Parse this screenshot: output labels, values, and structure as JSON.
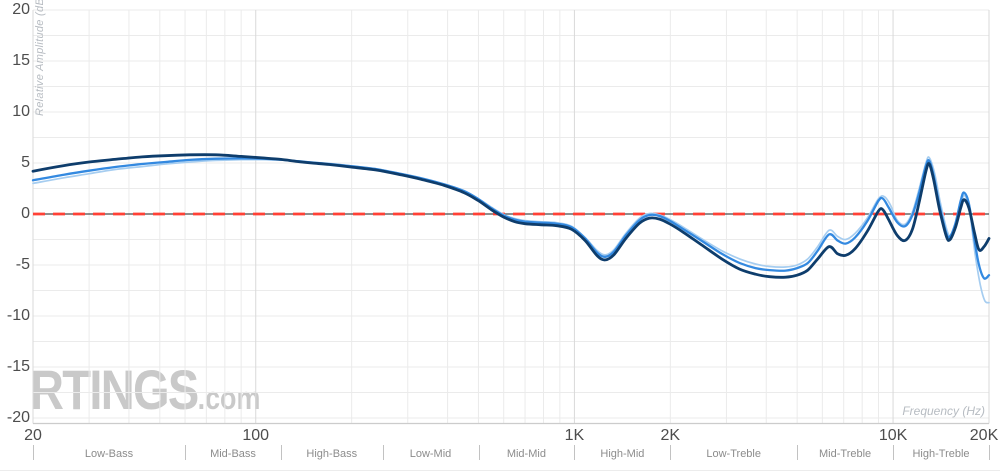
{
  "watermark": {
    "brand": "RTINGS",
    "suffix": ".com"
  },
  "chart_data": {
    "type": "line",
    "title": "",
    "xlabel": "Frequency (Hz)",
    "ylabel": "Relative Amplitude (dBr)",
    "x_scale": "log",
    "xlim": [
      20,
      20000
    ],
    "ylim": [
      -20,
      20
    ],
    "grid": {
      "y_step": 2.5,
      "x_minor_per_decade": true
    },
    "zero_line": {
      "value": 0,
      "solid_color": "#4a4a4a",
      "dash_color": "#ff4136"
    },
    "y_ticks": [
      {
        "label": "20",
        "v": 20
      },
      {
        "label": "15",
        "v": 15
      },
      {
        "label": "10",
        "v": 10
      },
      {
        "label": "5",
        "v": 5
      },
      {
        "label": "0",
        "v": 0
      },
      {
        "label": "-5",
        "v": -5
      },
      {
        "label": "-10",
        "v": -10
      },
      {
        "label": "-15",
        "v": -15
      },
      {
        "label": "-20",
        "v": -20
      }
    ],
    "x_ticks": [
      {
        "label": "20",
        "f": 20
      },
      {
        "label": "100",
        "f": 100
      },
      {
        "label": "1K",
        "f": 1000
      },
      {
        "label": "2K",
        "f": 2000
      },
      {
        "label": "10K",
        "f": 10000
      },
      {
        "label": "20K",
        "f": 20000
      }
    ],
    "bands": [
      {
        "label": "Low-Bass",
        "from": 20,
        "to": 60
      },
      {
        "label": "Mid-Bass",
        "from": 60,
        "to": 120
      },
      {
        "label": "High-Bass",
        "from": 120,
        "to": 250
      },
      {
        "label": "Low-Mid",
        "from": 250,
        "to": 500
      },
      {
        "label": "Mid-Mid",
        "from": 500,
        "to": 1000
      },
      {
        "label": "High-Mid",
        "from": 1000,
        "to": 2000
      },
      {
        "label": "Low-Treble",
        "from": 2000,
        "to": 5000
      },
      {
        "label": "Mid-Treble",
        "from": 5000,
        "to": 10000
      },
      {
        "label": "High-Treble",
        "from": 10000,
        "to": 20000
      }
    ],
    "series": [
      {
        "name": "pale-blue",
        "color": "#a6cdf0",
        "width": 1.7,
        "points": [
          [
            20,
            3.0
          ],
          [
            25,
            3.55
          ],
          [
            30,
            3.95
          ],
          [
            36,
            4.35
          ],
          [
            44,
            4.65
          ],
          [
            52,
            4.9
          ],
          [
            62,
            5.1
          ],
          [
            75,
            5.25
          ],
          [
            90,
            5.32
          ],
          [
            105,
            5.32
          ],
          [
            120,
            5.28
          ],
          [
            135,
            5.18
          ],
          [
            150,
            5.08
          ],
          [
            170,
            4.95
          ],
          [
            200,
            4.72
          ],
          [
            240,
            4.42
          ],
          [
            280,
            4.02
          ],
          [
            330,
            3.55
          ],
          [
            390,
            2.95
          ],
          [
            450,
            2.3
          ],
          [
            500,
            1.5
          ],
          [
            550,
            0.65
          ],
          [
            600,
            -0.05
          ],
          [
            650,
            -0.45
          ],
          [
            700,
            -0.65
          ],
          [
            780,
            -0.75
          ],
          [
            880,
            -0.85
          ],
          [
            980,
            -1.2
          ],
          [
            1080,
            -2.3
          ],
          [
            1180,
            -3.6
          ],
          [
            1250,
            -4.0
          ],
          [
            1330,
            -3.5
          ],
          [
            1450,
            -1.9
          ],
          [
            1600,
            -0.4
          ],
          [
            1720,
            0.05
          ],
          [
            1850,
            -0.1
          ],
          [
            2000,
            -0.55
          ],
          [
            2200,
            -1.3
          ],
          [
            2500,
            -2.4
          ],
          [
            2900,
            -3.6
          ],
          [
            3300,
            -4.4
          ],
          [
            3700,
            -4.9
          ],
          [
            4100,
            -5.15
          ],
          [
            4600,
            -5.2
          ],
          [
            5000,
            -5.0
          ],
          [
            5400,
            -4.4
          ],
          [
            5800,
            -3.2
          ],
          [
            6300,
            -1.6
          ],
          [
            6700,
            -2.2
          ],
          [
            7100,
            -2.5
          ],
          [
            7600,
            -1.9
          ],
          [
            8300,
            -0.4
          ],
          [
            9000,
            1.5
          ],
          [
            9400,
            1.7
          ],
          [
            9800,
            0.9
          ],
          [
            10300,
            -0.6
          ],
          [
            10900,
            -1.0
          ],
          [
            11500,
            0.2
          ],
          [
            12100,
            2.6
          ],
          [
            12700,
            5.1
          ],
          [
            13000,
            5.5
          ],
          [
            13500,
            4.0
          ],
          [
            14100,
            1.0
          ],
          [
            14800,
            -1.7
          ],
          [
            15200,
            -2.1
          ],
          [
            15800,
            -1.1
          ],
          [
            16400,
            1.2
          ],
          [
            16800,
            1.8
          ],
          [
            17400,
            0.2
          ],
          [
            18100,
            -4.0
          ],
          [
            18800,
            -7.0
          ],
          [
            19400,
            -8.5
          ],
          [
            20000,
            -8.7
          ]
        ]
      },
      {
        "name": "bright-blue",
        "color": "#3389e0",
        "width": 2.3,
        "points": [
          [
            20,
            3.3
          ],
          [
            25,
            3.85
          ],
          [
            30,
            4.25
          ],
          [
            36,
            4.6
          ],
          [
            44,
            4.9
          ],
          [
            52,
            5.1
          ],
          [
            62,
            5.3
          ],
          [
            75,
            5.42
          ],
          [
            90,
            5.45
          ],
          [
            105,
            5.42
          ],
          [
            120,
            5.32
          ],
          [
            135,
            5.18
          ],
          [
            150,
            5.05
          ],
          [
            170,
            4.9
          ],
          [
            200,
            4.68
          ],
          [
            240,
            4.38
          ],
          [
            280,
            3.98
          ],
          [
            330,
            3.5
          ],
          [
            390,
            2.9
          ],
          [
            450,
            2.25
          ],
          [
            500,
            1.45
          ],
          [
            550,
            0.55
          ],
          [
            600,
            -0.15
          ],
          [
            650,
            -0.55
          ],
          [
            700,
            -0.75
          ],
          [
            780,
            -0.85
          ],
          [
            880,
            -0.95
          ],
          [
            980,
            -1.3
          ],
          [
            1080,
            -2.4
          ],
          [
            1180,
            -3.8
          ],
          [
            1250,
            -4.2
          ],
          [
            1330,
            -3.7
          ],
          [
            1450,
            -2.1
          ],
          [
            1600,
            -0.6
          ],
          [
            1720,
            -0.1
          ],
          [
            1850,
            -0.2
          ],
          [
            2000,
            -0.7
          ],
          [
            2200,
            -1.5
          ],
          [
            2500,
            -2.6
          ],
          [
            2900,
            -3.9
          ],
          [
            3300,
            -4.8
          ],
          [
            3700,
            -5.3
          ],
          [
            4100,
            -5.5
          ],
          [
            4600,
            -5.55
          ],
          [
            5000,
            -5.3
          ],
          [
            5400,
            -4.8
          ],
          [
            5800,
            -3.6
          ],
          [
            6300,
            -2.0
          ],
          [
            6700,
            -2.6
          ],
          [
            7100,
            -2.9
          ],
          [
            7600,
            -2.3
          ],
          [
            8300,
            -0.7
          ],
          [
            9000,
            1.3
          ],
          [
            9300,
            1.5
          ],
          [
            9700,
            0.6
          ],
          [
            10300,
            -0.8
          ],
          [
            10900,
            -1.2
          ],
          [
            11500,
            -0.1
          ],
          [
            12100,
            2.2
          ],
          [
            12700,
            4.8
          ],
          [
            13000,
            5.2
          ],
          [
            13400,
            3.8
          ],
          [
            14000,
            0.8
          ],
          [
            14700,
            -1.9
          ],
          [
            15100,
            -2.2
          ],
          [
            15700,
            -0.9
          ],
          [
            16300,
            1.3
          ],
          [
            16700,
            2.1
          ],
          [
            17300,
            1.0
          ],
          [
            18000,
            -2.5
          ],
          [
            18600,
            -5.0
          ],
          [
            19300,
            -6.3
          ],
          [
            20000,
            -6.0
          ]
        ]
      },
      {
        "name": "dark-navy",
        "color": "#0e3d6c",
        "width": 2.8,
        "points": [
          [
            20,
            4.2
          ],
          [
            25,
            4.75
          ],
          [
            30,
            5.1
          ],
          [
            36,
            5.35
          ],
          [
            44,
            5.6
          ],
          [
            52,
            5.72
          ],
          [
            62,
            5.8
          ],
          [
            75,
            5.8
          ],
          [
            90,
            5.65
          ],
          [
            105,
            5.5
          ],
          [
            120,
            5.35
          ],
          [
            135,
            5.15
          ],
          [
            150,
            5.0
          ],
          [
            170,
            4.85
          ],
          [
            200,
            4.6
          ],
          [
            240,
            4.3
          ],
          [
            280,
            3.9
          ],
          [
            330,
            3.4
          ],
          [
            390,
            2.8
          ],
          [
            450,
            2.1
          ],
          [
            500,
            1.3
          ],
          [
            550,
            0.4
          ],
          [
            600,
            -0.3
          ],
          [
            650,
            -0.75
          ],
          [
            700,
            -0.95
          ],
          [
            780,
            -1.05
          ],
          [
            880,
            -1.15
          ],
          [
            980,
            -1.5
          ],
          [
            1080,
            -2.6
          ],
          [
            1180,
            -4.1
          ],
          [
            1250,
            -4.5
          ],
          [
            1330,
            -4.0
          ],
          [
            1450,
            -2.4
          ],
          [
            1600,
            -0.9
          ],
          [
            1720,
            -0.4
          ],
          [
            1850,
            -0.5
          ],
          [
            2000,
            -1.0
          ],
          [
            2200,
            -1.8
          ],
          [
            2500,
            -3.0
          ],
          [
            2900,
            -4.4
          ],
          [
            3300,
            -5.4
          ],
          [
            3700,
            -5.9
          ],
          [
            4100,
            -6.15
          ],
          [
            4600,
            -6.2
          ],
          [
            5000,
            -6.0
          ],
          [
            5400,
            -5.5
          ],
          [
            5800,
            -4.4
          ],
          [
            6300,
            -3.2
          ],
          [
            6700,
            -3.9
          ],
          [
            7100,
            -4.05
          ],
          [
            7600,
            -3.4
          ],
          [
            8300,
            -1.7
          ],
          [
            9000,
            0.3
          ],
          [
            9300,
            0.4
          ],
          [
            9700,
            -0.6
          ],
          [
            10300,
            -2.1
          ],
          [
            10900,
            -2.6
          ],
          [
            11500,
            -1.5
          ],
          [
            12100,
            1.3
          ],
          [
            12700,
            4.3
          ],
          [
            13000,
            4.9
          ],
          [
            13400,
            3.4
          ],
          [
            14000,
            0.4
          ],
          [
            14700,
            -2.2
          ],
          [
            15100,
            -2.5
          ],
          [
            15700,
            -1.3
          ],
          [
            16300,
            0.6
          ],
          [
            16700,
            1.4
          ],
          [
            17300,
            0.6
          ],
          [
            18000,
            -1.8
          ],
          [
            18600,
            -3.5
          ],
          [
            19300,
            -3.2
          ],
          [
            20000,
            -2.4
          ]
        ]
      }
    ],
    "style": {
      "grid_minor": "#ebebeb",
      "grid_major": "#d9d9d9",
      "axis_bottom": "#cccccc",
      "tick_text": "#4d4d4d",
      "band_text": "#8c8c8c",
      "band_sep": "#c2c2c2",
      "axis_title": "#b7bcc2",
      "watermark": "#c9c9c9"
    }
  }
}
